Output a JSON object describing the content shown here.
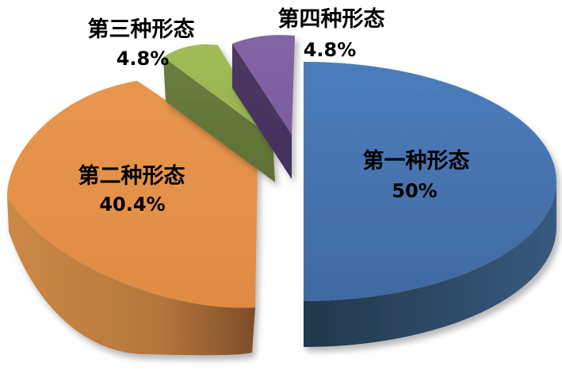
{
  "chart_data": {
    "type": "pie",
    "title": "",
    "style": "3d-exploded-pie",
    "background": "#ffffff",
    "legend": "none",
    "label_format": "category name above percentage, bold black text",
    "categories": [
      "第一种形态",
      "第二种形态",
      "第三种形态",
      "第四种形态"
    ],
    "values": [
      50,
      40.4,
      4.8,
      4.8
    ],
    "slices": [
      {
        "label": "第一种形态",
        "value": 50,
        "display": "50%",
        "label_placement": "inside",
        "colors": {
          "face": "#4b7dbc",
          "face2": "#4069a1",
          "side": "#375a7e",
          "side2": "#22374b"
        }
      },
      {
        "label": "第二种形态",
        "value": 40.4,
        "display": "40.4%",
        "label_placement": "inside",
        "colors": {
          "face": "#e8964e",
          "face2": "#e08b43",
          "side": "#cd8945",
          "side2": "#7d4e28"
        }
      },
      {
        "label": "第三种形态",
        "value": 4.8,
        "display": "4.8%",
        "label_placement": "outside-above",
        "colors": {
          "face": "#a2bc5a",
          "face2": "#97b150",
          "side": "#6b7e3e",
          "side2": "#5e7036"
        }
      },
      {
        "label": "第四种形态",
        "value": 4.8,
        "display": "4.8%",
        "label_placement": "outside-above",
        "colors": {
          "face": "#8365a5",
          "face2": "#7a5d9c",
          "side": "#4c3864",
          "side2": "#42305a"
        }
      }
    ]
  }
}
